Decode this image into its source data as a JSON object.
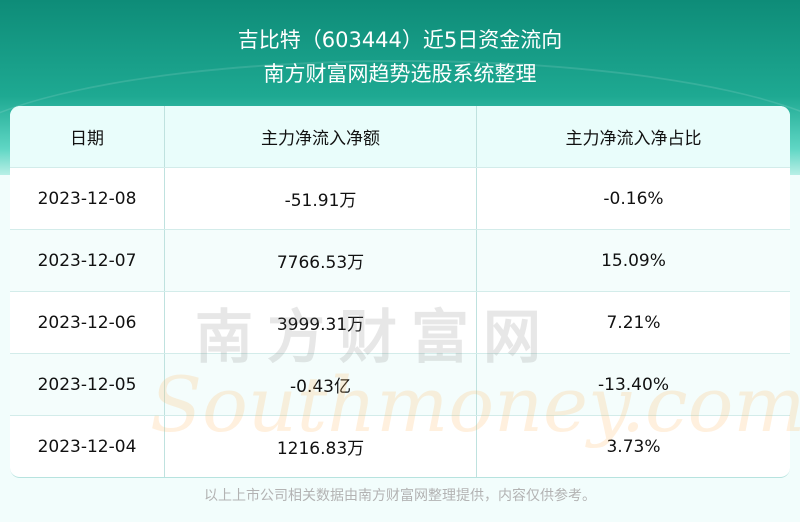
{
  "header": {
    "title": "吉比特（603444）近5日资金流向",
    "subtitle": "南方财富网趋势选股系统整理"
  },
  "table": {
    "columns": [
      "日期",
      "主力净流入净额",
      "主力净流入净占比"
    ],
    "rows": [
      [
        "2023-12-08",
        "-51.91万",
        "-0.16%"
      ],
      [
        "2023-12-07",
        "7766.53万",
        "15.09%"
      ],
      [
        "2023-12-06",
        "3999.31万",
        "7.21%"
      ],
      [
        "2023-12-05",
        "-0.43亿",
        "-13.40%"
      ],
      [
        "2023-12-04",
        "1216.83万",
        "3.73%"
      ]
    ]
  },
  "watermark": {
    "cn": "南方财富网",
    "en": "Southmoney.com"
  },
  "footer": "以上上市公司相关数据由南方财富网整理提供，内容仅供参考。",
  "colors": {
    "header": "#1ea992",
    "header_row": "#e9fdfb"
  }
}
